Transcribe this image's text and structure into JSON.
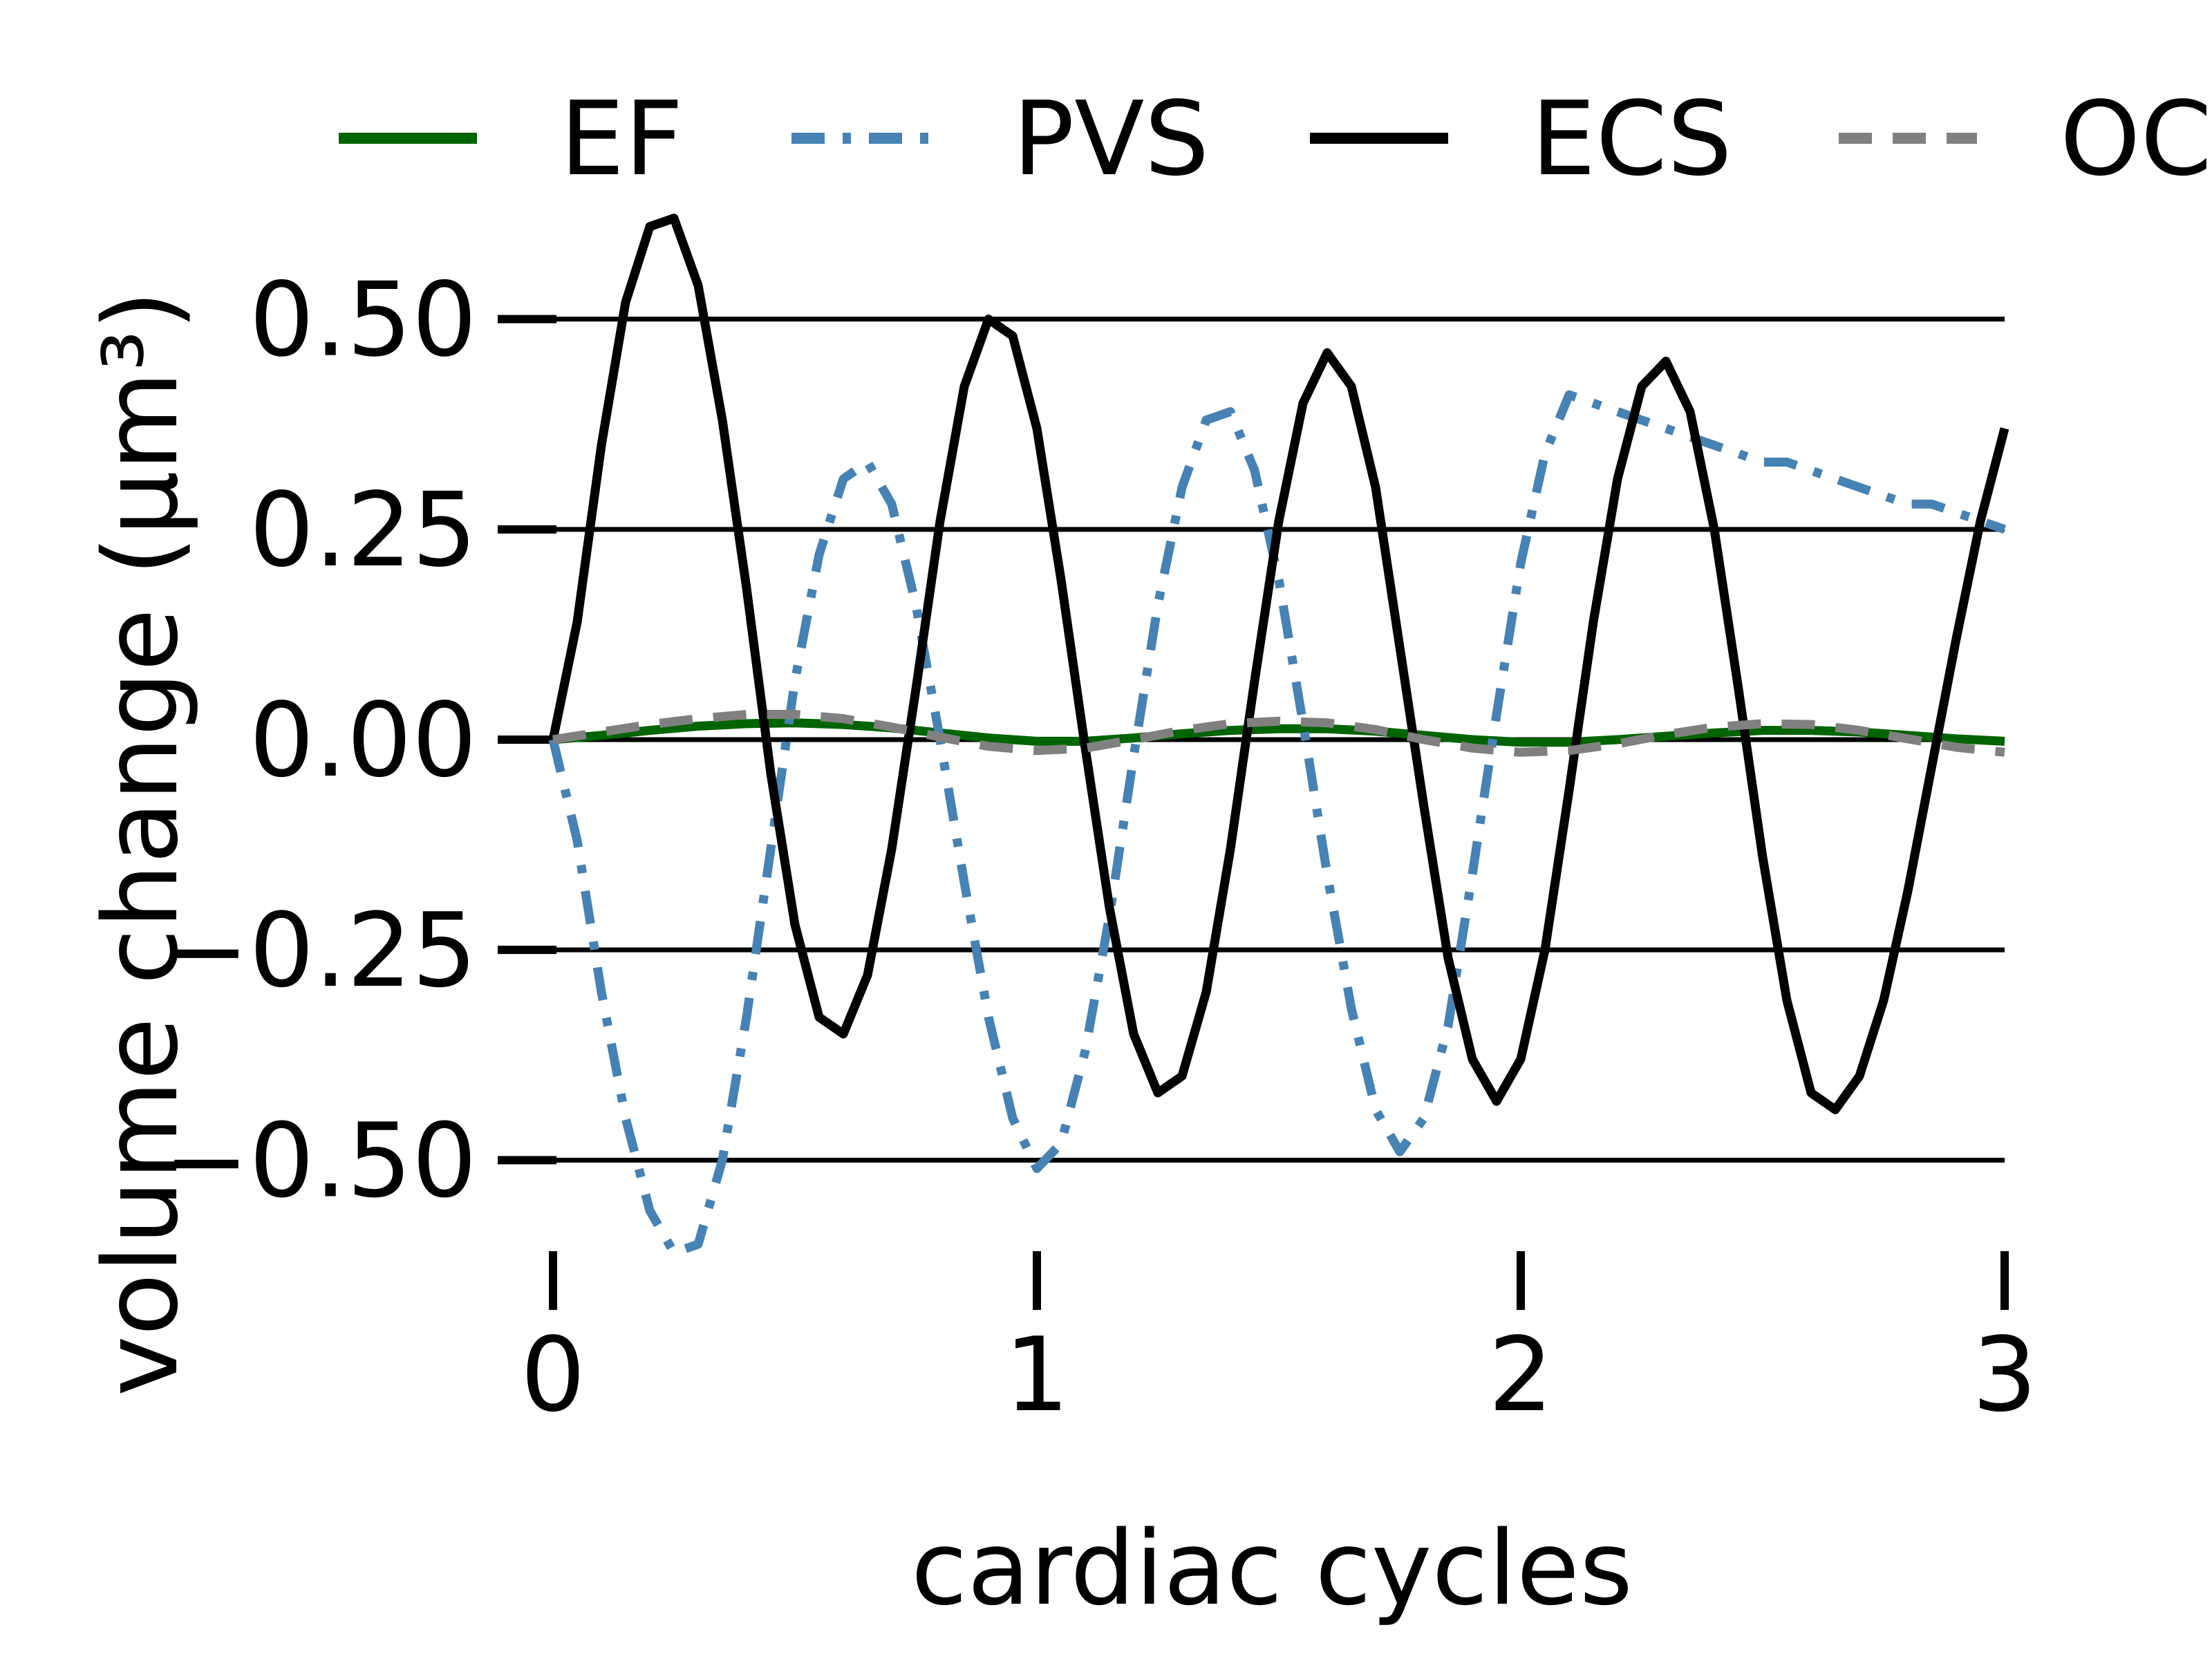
{
  "chart_data": {
    "type": "line",
    "xlabel": "cardiac cycles",
    "ylabel": "volume change (µm³)",
    "xlim": [
      0,
      3
    ],
    "ylim": [
      -0.6,
      0.6
    ],
    "x_ticks": [
      {
        "value": 0,
        "label": "0"
      },
      {
        "value": 1,
        "label": "1"
      },
      {
        "value": 2,
        "label": "2"
      },
      {
        "value": 3,
        "label": "3"
      }
    ],
    "y_ticks": [
      {
        "value": 0.5,
        "label": "0.50"
      },
      {
        "value": 0.25,
        "label": "0.25"
      },
      {
        "value": 0.0,
        "label": "0.00"
      },
      {
        "value": -0.25,
        "label": "−0.25"
      },
      {
        "value": -0.5,
        "label": "−0.50"
      }
    ],
    "grid": "horizontal",
    "legend_position": "top",
    "series": [
      {
        "name": "EF",
        "color": "#006400",
        "dash": "solid",
        "x": [
          0,
          0.1,
          0.2,
          0.3,
          0.4,
          0.5,
          0.6,
          0.7,
          0.8,
          0.9,
          1.0,
          1.1,
          1.2,
          1.3,
          1.4,
          1.5,
          1.6,
          1.7,
          1.8,
          1.9,
          2.0,
          2.1,
          2.2,
          2.3,
          2.4,
          2.5,
          2.6,
          2.7,
          2.8,
          2.9,
          3.0
        ],
        "y": [
          0.0,
          0.005,
          0.011,
          0.016,
          0.019,
          0.02,
          0.018,
          0.014,
          0.008,
          0.002,
          -0.002,
          -0.002,
          0.002,
          0.007,
          0.011,
          0.013,
          0.013,
          0.01,
          0.005,
          0.0,
          -0.003,
          -0.003,
          0.0,
          0.004,
          0.008,
          0.011,
          0.011,
          0.009,
          0.005,
          0.001,
          -0.002
        ]
      },
      {
        "name": "PVS",
        "color": "#4682b4",
        "dash": "dashdot",
        "x": [
          0,
          0.05,
          0.1,
          0.15,
          0.2,
          0.25,
          0.3,
          0.35,
          0.4,
          0.45,
          0.5,
          0.55,
          0.6,
          0.65,
          0.7,
          0.75,
          0.8,
          0.85,
          0.9,
          0.95,
          1.0,
          1.05,
          1.1,
          1.15,
          1.2,
          1.25,
          1.3,
          1.35,
          1.4,
          1.45,
          1.5,
          1.55,
          1.6,
          1.65,
          1.7,
          1.75,
          1.8,
          1.85,
          1.9,
          1.95,
          2.0,
          2.05,
          2.1,
          2.15,
          2.2,
          2.25,
          2.3,
          2.35,
          2.4,
          2.45,
          2.5,
          2.55,
          2.6,
          2.65,
          2.7,
          2.75,
          2.8,
          2.85,
          2.9,
          2.95,
          3.0
        ],
        "y": [
          0.0,
          -0.12,
          -0.3,
          -0.45,
          -0.56,
          -0.61,
          -0.6,
          -0.5,
          -0.33,
          -0.13,
          0.07,
          0.22,
          0.31,
          0.33,
          0.28,
          0.16,
          0.0,
          -0.17,
          -0.33,
          -0.45,
          -0.51,
          -0.48,
          -0.37,
          -0.21,
          -0.02,
          0.16,
          0.3,
          0.38,
          0.39,
          0.32,
          0.19,
          0.02,
          -0.16,
          -0.32,
          -0.44,
          -0.49,
          -0.45,
          -0.34,
          -0.16,
          0.03,
          0.21,
          0.34,
          0.41,
          0.4,
          0.39,
          0.38,
          0.37,
          0.36,
          0.35,
          0.34,
          0.33,
          0.33,
          0.32,
          0.31,
          0.3,
          0.29,
          0.28,
          0.28,
          0.27,
          0.26,
          0.25
        ]
      },
      {
        "name": "ECS",
        "color": "#000000",
        "dash": "solid",
        "x": [
          0,
          0.05,
          0.1,
          0.15,
          0.2,
          0.25,
          0.3,
          0.35,
          0.4,
          0.45,
          0.5,
          0.55,
          0.6,
          0.65,
          0.7,
          0.75,
          0.8,
          0.85,
          0.9,
          0.95,
          1.0,
          1.05,
          1.1,
          1.15,
          1.2,
          1.25,
          1.3,
          1.35,
          1.4,
          1.45,
          1.5,
          1.55,
          1.6,
          1.65,
          1.7,
          1.75,
          1.8,
          1.85,
          1.9,
          1.95,
          2.0,
          2.05,
          2.1,
          2.15,
          2.2,
          2.25,
          2.3,
          2.35,
          2.4,
          2.45,
          2.5,
          2.55,
          2.6,
          2.65,
          2.7,
          2.75,
          2.8,
          2.85,
          2.9,
          2.95,
          3.0
        ],
        "y": [
          0.0,
          0.14,
          0.35,
          0.52,
          0.61,
          0.62,
          0.54,
          0.38,
          0.18,
          -0.04,
          -0.22,
          -0.33,
          -0.35,
          -0.28,
          -0.13,
          0.06,
          0.26,
          0.42,
          0.5,
          0.48,
          0.37,
          0.19,
          -0.01,
          -0.2,
          -0.35,
          -0.42,
          -0.4,
          -0.3,
          -0.13,
          0.07,
          0.26,
          0.4,
          0.46,
          0.42,
          0.3,
          0.11,
          -0.08,
          -0.26,
          -0.38,
          -0.43,
          -0.38,
          -0.25,
          -0.06,
          0.14,
          0.31,
          0.42,
          0.45,
          0.39,
          0.25,
          0.06,
          -0.14,
          -0.31,
          -0.42,
          -0.44,
          -0.4,
          -0.31,
          -0.18,
          -0.03,
          0.12,
          0.26,
          0.37
        ]
      },
      {
        "name": "OC",
        "color": "#808080",
        "dash": "dashed",
        "x": [
          0,
          0.1,
          0.2,
          0.3,
          0.4,
          0.5,
          0.6,
          0.7,
          0.8,
          0.9,
          1.0,
          1.1,
          1.2,
          1.3,
          1.4,
          1.5,
          1.6,
          1.7,
          1.8,
          1.9,
          2.0,
          2.1,
          2.2,
          2.3,
          2.4,
          2.5,
          2.6,
          2.7,
          2.8,
          2.9,
          3.0
        ],
        "y": [
          0.0,
          0.009,
          0.018,
          0.025,
          0.03,
          0.03,
          0.025,
          0.015,
          0.003,
          -0.008,
          -0.013,
          -0.01,
          0.0,
          0.011,
          0.019,
          0.022,
          0.02,
          0.012,
          0.0,
          -0.01,
          -0.015,
          -0.013,
          -0.005,
          0.006,
          0.015,
          0.019,
          0.018,
          0.011,
          0.001,
          -0.009,
          -0.015
        ]
      }
    ]
  }
}
